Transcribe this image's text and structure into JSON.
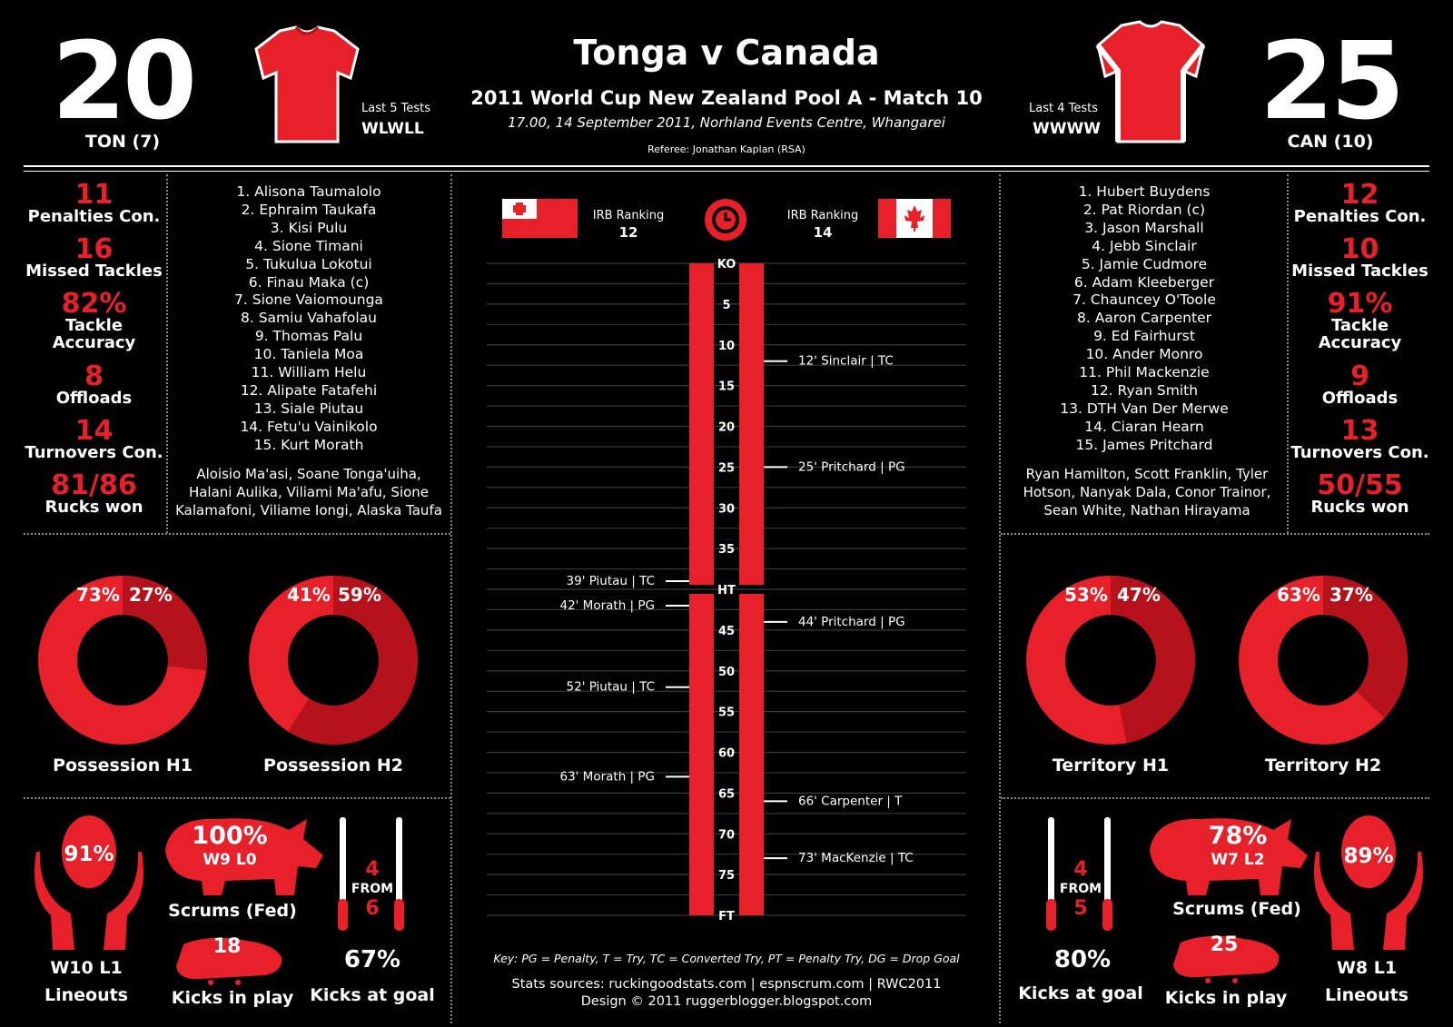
{
  "header": {
    "title": "Tonga v Canada",
    "subtitle": "2011 World Cup New Zealand Pool A - Match 10",
    "details": "17.00, 14 September 2011, Norhland Events Centre, Whangarei",
    "referee": "Referee: Jonathan Kaplan (RSA)"
  },
  "home": {
    "score": "20",
    "team_label": "TON (7)",
    "form_title": "Last 5 Tests",
    "form": "WLWLL",
    "ranking_label": "IRB Ranking",
    "ranking": "12",
    "stats": [
      {
        "value": "11",
        "label": "Penalties Con."
      },
      {
        "value": "16",
        "label": "Missed Tackles"
      },
      {
        "value": "82%",
        "label": "Tackle Accuracy"
      },
      {
        "value": "8",
        "label": "Offloads"
      },
      {
        "value": "14",
        "label": "Turnovers Con."
      },
      {
        "value": "81/86",
        "label": "Rucks won"
      }
    ],
    "players": [
      "1. Alisona Taumalolo",
      "2. Ephraim Taukafa",
      "3. Kisi Pulu",
      "4. Sione Timani",
      "5. Tukulua Lokotui",
      "6. Finau Maka (c)",
      "7. Sione Vaiomounga",
      "8. Samiu Vahafolau",
      "9. Thomas Palu",
      "10. Taniela Moa",
      "11. William Helu",
      "12. Alipate Fatafehi",
      "13. Siale Piutau",
      "14. Fetu'u Vainikolo",
      "15. Kurt Morath"
    ],
    "subs": "Aloisio Ma'asi, Soane Tonga'uiha, Halani Aulika, Viliami Ma'afu, Sione Kalamafoni, Viliame Iongi, Alaska Taufa",
    "donuts": [
      {
        "label": "Possession H1",
        "a": "73%",
        "b": "27%",
        "fraction": 0.27
      },
      {
        "label": "Possession H2",
        "a": "41%",
        "b": "59%",
        "fraction": 0.59
      }
    ],
    "lineouts": {
      "pct": "91%",
      "record": "W10 L1",
      "label": "Lineouts"
    },
    "scrums": {
      "pct": "100%",
      "record": "W9 L0",
      "label": "Scrums (Fed)"
    },
    "kicks_play": {
      "value": "18",
      "label": "Kicks in play"
    },
    "goal": {
      "made": "4",
      "from": "FROM",
      "att": "6",
      "pct": "67%",
      "label": "Kicks at goal"
    }
  },
  "away": {
    "score": "25",
    "team_label": "CAN (10)",
    "form_title": "Last 4 Tests",
    "form": "WWWW",
    "ranking_label": "IRB Ranking",
    "ranking": "14",
    "stats": [
      {
        "value": "12",
        "label": "Penalties Con."
      },
      {
        "value": "10",
        "label": "Missed Tackles"
      },
      {
        "value": "91%",
        "label": "Tackle Accuracy"
      },
      {
        "value": "9",
        "label": "Offloads"
      },
      {
        "value": "13",
        "label": "Turnovers Con."
      },
      {
        "value": "50/55",
        "label": "Rucks won"
      }
    ],
    "players": [
      "1. Hubert Buydens",
      "2. Pat Riordan (c)",
      "3. Jason Marshall",
      "4. Jebb Sinclair",
      "5. Jamie Cudmore",
      "6. Adam Kleeberger",
      "7. Chauncey O'Toole",
      "8. Aaron Carpenter",
      "9. Ed Fairhurst",
      "10. Ander Monro",
      "11. Phil Mackenzie",
      "12. Ryan Smith",
      "13. DTH Van Der Merwe",
      "14. Ciaran Hearn",
      "15. James Pritchard"
    ],
    "subs": "Ryan Hamilton, Scott Franklin, Tyler Hotson, Nanyak Dala, Conor Trainor, Sean White, Nathan Hirayama",
    "donuts": [
      {
        "label": "Territory  H1",
        "a": "53%",
        "b": "47%",
        "fraction": 0.47
      },
      {
        "label": "Territory  H2",
        "a": "63%",
        "b": "37%",
        "fraction": 0.37
      }
    ],
    "lineouts": {
      "pct": "89%",
      "record": "W8 L1",
      "label": "Lineouts"
    },
    "scrums": {
      "pct": "78%",
      "record": "W7 L2",
      "label": "Scrums (Fed)"
    },
    "kicks_play": {
      "value": "25",
      "label": "Kicks in play"
    },
    "goal": {
      "made": "4",
      "from": "FROM",
      "att": "5",
      "pct": "80%",
      "label": "Kicks at goal"
    }
  },
  "timeline": {
    "ticks": [
      "KO",
      "5",
      "10",
      "15",
      "20",
      "25",
      "30",
      "35",
      "HT",
      "45",
      "50",
      "55",
      "60",
      "65",
      "70",
      "75",
      "FT"
    ],
    "home_events": [
      {
        "minute": 39,
        "text": "39' Piutau | TC"
      },
      {
        "minute": 42,
        "text": "42' Morath | PG"
      },
      {
        "minute": 52,
        "text": "52' Piutau | TC"
      },
      {
        "minute": 63,
        "text": "63' Morath | PG"
      }
    ],
    "away_events": [
      {
        "minute": 12,
        "text": "12' Sinclair | TC"
      },
      {
        "minute": 25,
        "text": "25' Pritchard | PG"
      },
      {
        "minute": 44,
        "text": "44' Pritchard | PG"
      },
      {
        "minute": 66,
        "text": "66' Carpenter | T"
      },
      {
        "minute": 73,
        "text": "73' MacKenzie | TC"
      }
    ]
  },
  "footer": {
    "key": "Key: PG = Penalty, T = Try, TC = Converted Try, PT = Penalty Try, DG = Drop Goal",
    "sources": "Stats sources: ruckingoodstats.com | espnscrum.com | RWC2011",
    "design": "Design © 2011 ruggerblogger.blogspot.com"
  },
  "colors": {
    "red": "#e8202a",
    "dark_red": "#b5121b",
    "background": "#000000"
  }
}
